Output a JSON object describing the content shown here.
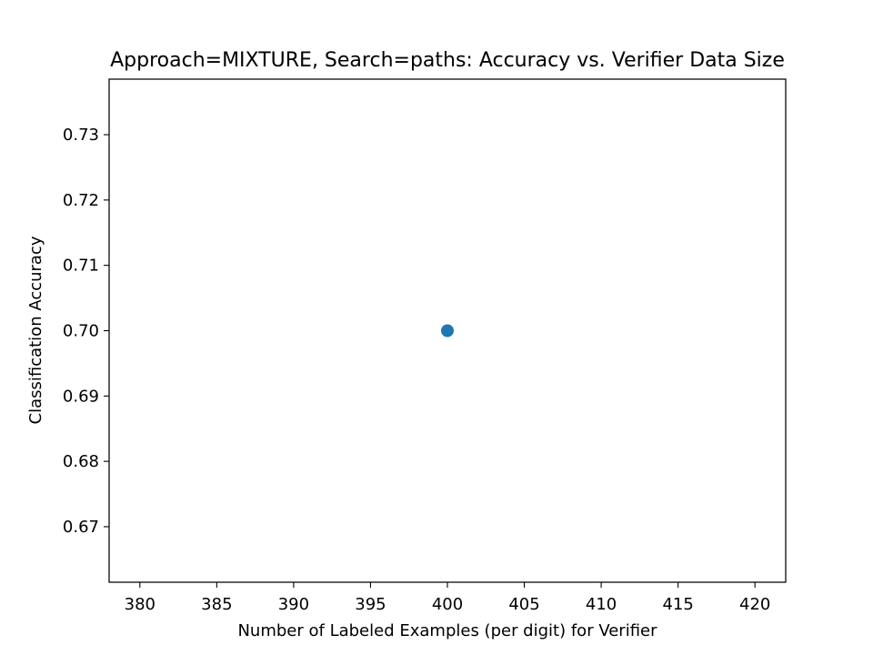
{
  "chart_data": {
    "type": "scatter",
    "title": "Approach=MIXTURE, Search=paths: Accuracy vs. Verifier Data Size",
    "xlabel": "Number of Labeled Examples (per digit) for Verifier",
    "ylabel": "Classification Accuracy",
    "xlim": [
      378,
      422
    ],
    "ylim": [
      0.6615,
      0.7385
    ],
    "x_ticks": [
      380,
      385,
      390,
      395,
      400,
      405,
      410,
      415,
      420
    ],
    "y_ticks": [
      0.67,
      0.68,
      0.69,
      0.7,
      0.71,
      0.72,
      0.73
    ],
    "x_tick_labels": [
      "380",
      "385",
      "390",
      "395",
      "400",
      "405",
      "410",
      "415",
      "420"
    ],
    "y_tick_labels": [
      "0.67",
      "0.68",
      "0.69",
      "0.70",
      "0.71",
      "0.72",
      "0.73"
    ],
    "grid": false,
    "series": [
      {
        "x": [
          400
        ],
        "y": [
          0.7
        ],
        "color": "#1f77b4"
      }
    ]
  }
}
